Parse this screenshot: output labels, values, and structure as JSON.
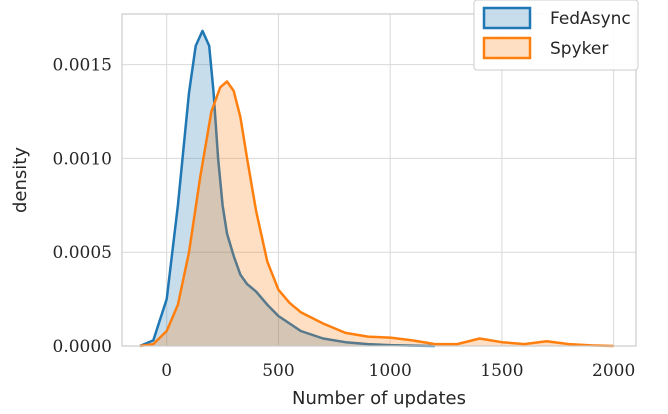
{
  "chart_data": {
    "type": "area",
    "title": "",
    "xlabel": "Number of updates",
    "ylabel": "density",
    "xlim": [
      -200,
      2100
    ],
    "ylim": [
      0,
      0.00177
    ],
    "xticks": [
      "0",
      "500",
      "1000",
      "1500",
      "2000"
    ],
    "xtick_values": [
      0,
      500,
      1000,
      1500,
      2000
    ],
    "yticks": [
      "0.0000",
      "0.0005",
      "0.0010",
      "0.0015"
    ],
    "ytick_values": [
      0,
      0.0005,
      0.001,
      0.0015
    ],
    "grid": true,
    "legend_position": "top-right",
    "series": [
      {
        "name": "FedAsync",
        "color": "#1f77b4",
        "x": [
          -120,
          -60,
          0,
          50,
          100,
          130,
          160,
          190,
          210,
          230,
          250,
          270,
          300,
          330,
          360,
          400,
          450,
          500,
          600,
          700,
          800,
          900,
          1000,
          1100,
          1200
        ],
        "y": [
          0,
          3e-05,
          0.00025,
          0.00075,
          0.00135,
          0.0016,
          0.00168,
          0.0016,
          0.00135,
          0.001,
          0.00075,
          0.0006,
          0.00048,
          0.00038,
          0.00033,
          0.00029,
          0.00022,
          0.00016,
          8e-05,
          4e-05,
          2e-05,
          1e-05,
          5e-06,
          2e-06,
          0
        ]
      },
      {
        "name": "Spyker",
        "color": "#ff7f0e",
        "x": [
          -120,
          -60,
          0,
          50,
          100,
          150,
          200,
          240,
          270,
          300,
          330,
          360,
          400,
          450,
          500,
          550,
          600,
          700,
          800,
          900,
          1000,
          1100,
          1200,
          1300,
          1400,
          1500,
          1600,
          1700,
          1800,
          1900,
          2000
        ],
        "y": [
          0,
          1e-05,
          8e-05,
          0.00022,
          0.0005,
          0.0009,
          0.00125,
          0.00138,
          0.00141,
          0.00136,
          0.00122,
          0.001,
          0.00072,
          0.00045,
          0.0003,
          0.00023,
          0.00018,
          0.00012,
          7e-05,
          5e-05,
          4.5e-05,
          3e-05,
          1e-05,
          1e-05,
          4e-05,
          2e-05,
          1e-05,
          2.5e-05,
          1e-05,
          3e-06,
          0
        ]
      }
    ]
  }
}
